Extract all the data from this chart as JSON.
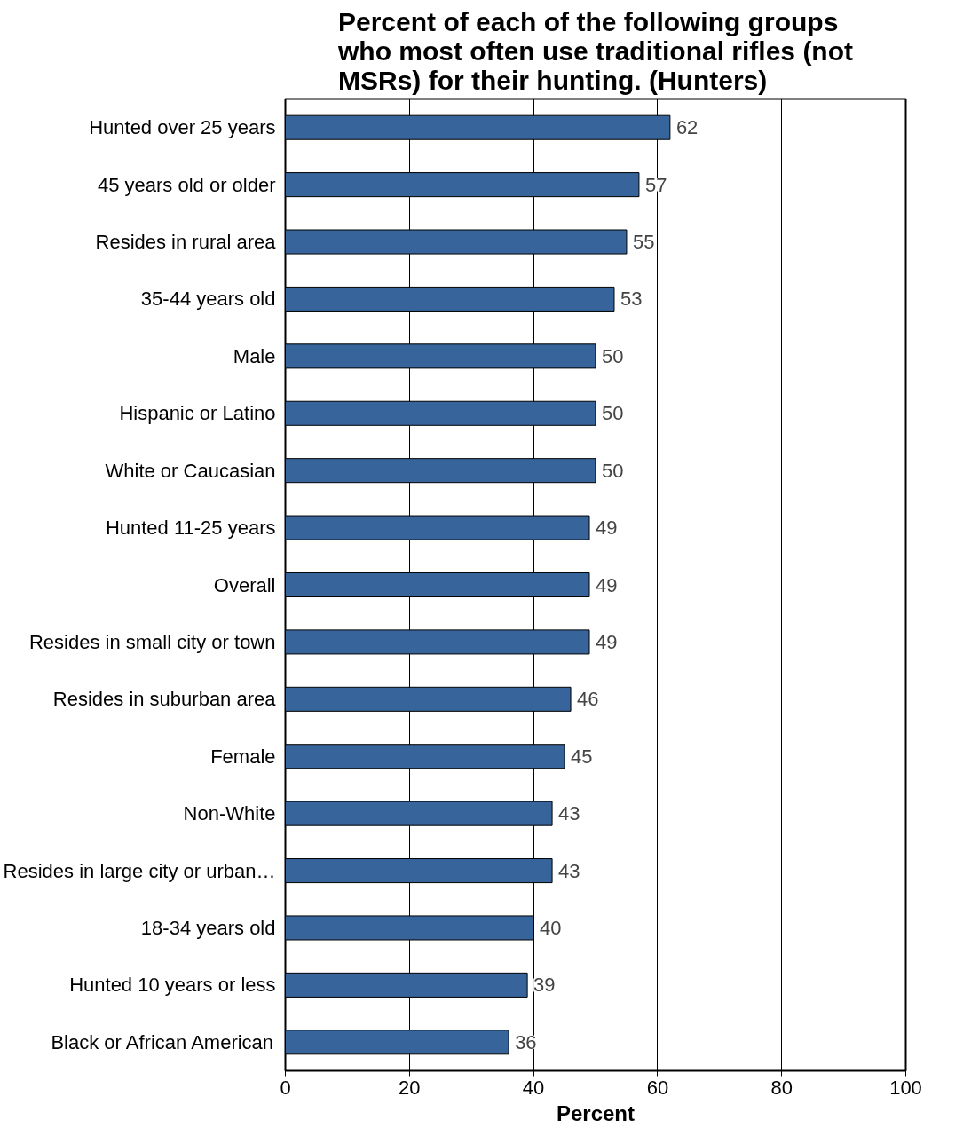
{
  "chart_data": {
    "type": "bar",
    "orientation": "horizontal",
    "title": "Percent of each of the following groups who most often use traditional rifles (not MSRs) for their hunting. (Hunters)",
    "xlabel": "Percent",
    "categories": [
      "Hunted over 25 years",
      "45 years old or older",
      "Resides in rural area",
      "35-44 years old",
      "Male",
      "Hispanic or Latino",
      "White or Caucasian",
      "Hunted 11-25 years",
      "Overall",
      "Resides in small city or town",
      "Resides in suburban area",
      "Female",
      "Non-White",
      "Resides in large city or urban…",
      "18-34 years old",
      "Hunted 10 years or less",
      "Black or African American"
    ],
    "values": [
      62,
      57,
      55,
      53,
      50,
      50,
      50,
      49,
      49,
      49,
      46,
      45,
      43,
      43,
      40,
      39,
      36
    ],
    "color": "#37649a",
    "xlim": [
      0,
      100
    ],
    "xticks": [
      0,
      20,
      40,
      60,
      80,
      100
    ],
    "grid": "x",
    "data_labels": true
  }
}
